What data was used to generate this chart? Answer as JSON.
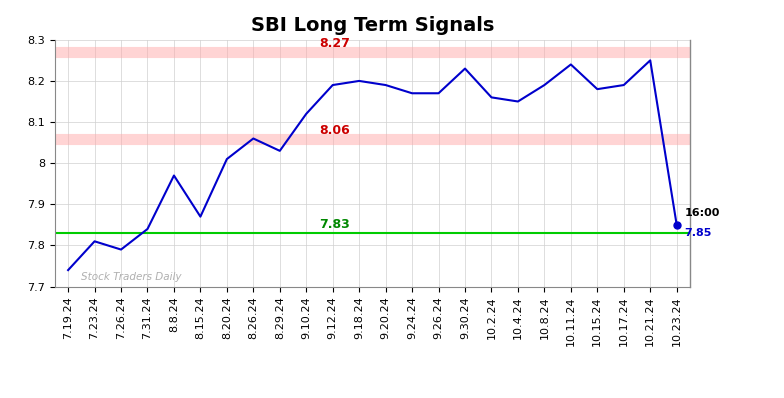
{
  "title": "SBI Long Term Signals",
  "ylim": [
    7.7,
    8.3
  ],
  "background_color": "#ffffff",
  "line_color": "#0000cc",
  "line_width": 1.5,
  "watermark": "Stock Traders Daily",
  "watermark_color": "#b0b0b0",
  "hline_red1": 8.27,
  "hline_red2": 8.06,
  "hline_green": 7.83,
  "hline_red_color": "#ffaaaa",
  "hline_green_color": "#00cc00",
  "label_red1": "8.27",
  "label_red2": "8.06",
  "label_green": "7.83",
  "label_red_color": "#cc0000",
  "label_green_color": "#008800",
  "last_label": "16:00",
  "last_value": "7.85",
  "last_value_color": "#0000cc",
  "last_label_color": "#000000",
  "endpoint_color": "#0000cc",
  "x_labels": [
    "7.19.24",
    "7.23.24",
    "7.26.24",
    "7.31.24",
    "8.8.24",
    "8.15.24",
    "8.20.24",
    "8.26.24",
    "8.29.24",
    "9.10.24",
    "9.12.24",
    "9.18.24",
    "9.20.24",
    "9.24.24",
    "9.26.24",
    "9.30.24",
    "10.2.24",
    "10.4.24",
    "10.8.24",
    "10.11.24",
    "10.15.24",
    "10.17.24",
    "10.21.24",
    "10.23.24"
  ],
  "y_values": [
    7.74,
    7.81,
    7.79,
    7.84,
    7.97,
    7.87,
    8.01,
    8.06,
    8.03,
    8.12,
    8.19,
    8.2,
    8.19,
    8.17,
    8.17,
    8.23,
    8.16,
    8.15,
    8.19,
    8.24,
    8.18,
    8.19,
    8.25,
    7.85
  ],
  "y_ticks": [
    7.7,
    7.8,
    7.9,
    8.0,
    8.1,
    8.2,
    8.3
  ],
  "title_fontsize": 14,
  "tick_fontsize": 8,
  "label_fontsize": 9
}
